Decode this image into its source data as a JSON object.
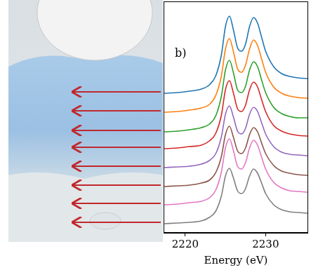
{
  "chart_data": {
    "type": "line",
    "xlabel": "Energy (eV)",
    "annotations": [
      "b)"
    ],
    "x": [
      2217.4,
      2219,
      2220.5,
      2222,
      2223,
      2223.8,
      2224.5,
      2225,
      2225.5,
      2226,
      2226.5,
      2227,
      2227.5,
      2228,
      2228.5,
      2229,
      2229.5,
      2230,
      2231,
      2232,
      2233,
      2234,
      2235.3
    ],
    "xlim": [
      2217.3,
      2235.3
    ],
    "xticks": [
      2220,
      2230
    ],
    "ylim": [
      0,
      330
    ],
    "grid": false,
    "tick_labels": "x",
    "series": [
      {
        "color": "#1f77b4",
        "values": [
          199,
          200,
          202,
          205,
          211,
          224,
          254,
          294,
          309,
          289,
          264,
          259,
          269,
          294,
          307,
          299,
          279,
          259,
          237,
          227,
          223,
          221,
          220
        ]
      },
      {
        "color": "#ff7f0e",
        "values": [
          172,
          173,
          175,
          178,
          183,
          196,
          224,
          262,
          277,
          258,
          234,
          229,
          239,
          262,
          275,
          267,
          248,
          229,
          208,
          199,
          195,
          193,
          192
        ]
      },
      {
        "color": "#2ca02c",
        "values": [
          144,
          145,
          147,
          150,
          155,
          167,
          195,
          232,
          246,
          228,
          204,
          200,
          209,
          232,
          244,
          237,
          218,
          200,
          179,
          170,
          166,
          164,
          164
        ]
      },
      {
        "color": "#d62728",
        "values": [
          120,
          121,
          123,
          125,
          131,
          142,
          168,
          204,
          217,
          199,
          177,
          173,
          182,
          204,
          215,
          208,
          190,
          173,
          153,
          145,
          141,
          139,
          138
        ]
      },
      {
        "color": "#9467bd",
        "values": [
          93,
          94,
          95,
          98,
          103,
          113,
          137,
          169,
          181,
          165,
          145,
          141,
          149,
          169,
          179,
          173,
          157,
          141,
          123,
          115,
          112,
          111,
          110
        ]
      },
      {
        "color": "#8c564b",
        "values": [
          66,
          67,
          68,
          71,
          75,
          86,
          109,
          140,
          152,
          136,
          117,
          113,
          121,
          140,
          150,
          144,
          128,
          113,
          96,
          88,
          85,
          83,
          82
        ]
      },
      {
        "color": "#e377c2",
        "values": [
          40,
          41,
          43,
          45,
          50,
          61,
          87,
          121,
          134,
          117,
          95,
          91,
          100,
          121,
          132,
          125,
          108,
          91,
          72,
          64,
          60,
          59,
          58
        ]
      },
      {
        "color": "#7f7f7f",
        "values": [
          13,
          14,
          15,
          17,
          22,
          31,
          53,
          81,
          92,
          78,
          60,
          56,
          63,
          81,
          91,
          85,
          71,
          56,
          40,
          33,
          30,
          29,
          28
        ]
      }
    ]
  }
}
